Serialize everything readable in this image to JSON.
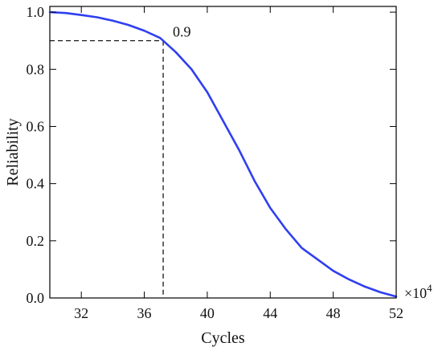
{
  "chart_data": {
    "type": "line",
    "title": "",
    "xlabel": "Cycles",
    "ylabel": "Reliability",
    "x_multiplier_label": "×10",
    "x_multiplier_exponent": "4",
    "xlim": [
      30,
      52
    ],
    "ylim": [
      0.0,
      1.02
    ],
    "x_ticks": [
      32,
      36,
      40,
      44,
      48,
      52
    ],
    "x_tick_labels": [
      "32",
      "36",
      "40",
      "44",
      "48",
      "52"
    ],
    "y_ticks": [
      0.0,
      0.2,
      0.4,
      0.6,
      0.8,
      1.0
    ],
    "y_tick_labels": [
      "0.0",
      "0.2",
      "0.4",
      "0.6",
      "0.8",
      "1.0"
    ],
    "grid": false,
    "series": [
      {
        "color": "#2f3ff0",
        "x": [
          30,
          31,
          32,
          33,
          34,
          35,
          36,
          37,
          37.2,
          38,
          39,
          40,
          41,
          42,
          43,
          44,
          45,
          46,
          47,
          48,
          49,
          50,
          51,
          52
        ],
        "y": [
          1.0,
          0.997,
          0.99,
          0.982,
          0.97,
          0.955,
          0.935,
          0.91,
          0.9,
          0.86,
          0.8,
          0.72,
          0.62,
          0.52,
          0.41,
          0.315,
          0.24,
          0.175,
          0.135,
          0.095,
          0.065,
          0.04,
          0.02,
          0.005
        ]
      }
    ],
    "annotations": [
      {
        "text": "0.9",
        "x": 37.2,
        "y": 0.9
      }
    ]
  }
}
